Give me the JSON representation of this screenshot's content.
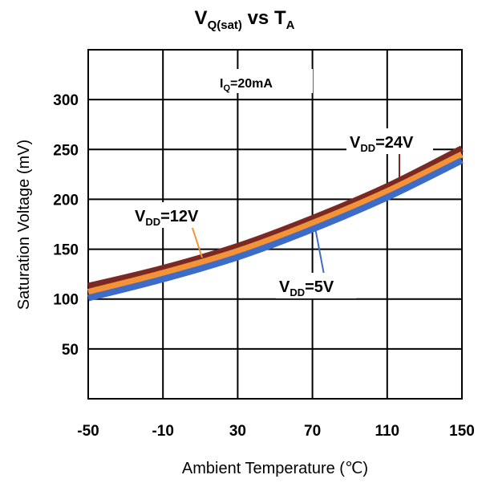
{
  "chart_data": {
    "type": "line",
    "title": {
      "main": "V",
      "main_sub": "Q(sat)",
      "middle": " vs T",
      "middle_sub": "A"
    },
    "xlabel": "Ambient Temperature (℃)",
    "ylabel": "Saturation Voltage (mV)",
    "xlim": [
      -50,
      150
    ],
    "ylim": [
      0,
      350
    ],
    "x_ticks": [
      -50,
      -10,
      30,
      70,
      110,
      150
    ],
    "y_ticks": [
      50,
      100,
      150,
      200,
      250,
      300
    ],
    "grid": true,
    "condition": {
      "prefix": "I",
      "sub": "Q",
      "suffix": "=20mA"
    },
    "series": [
      {
        "name": "VDD=24V",
        "color": "#7a2a22",
        "label": {
          "prefix": "V",
          "sub": "DD",
          "suffix": "=24V"
        },
        "x": [
          -50,
          -10,
          30,
          70,
          110,
          150
        ],
        "y": [
          113,
          131,
          153,
          181,
          213,
          251
        ]
      },
      {
        "name": "VDD=12V",
        "color": "#f39237",
        "label": {
          "prefix": "V",
          "sub": "DD",
          "suffix": "=12V"
        },
        "x": [
          -50,
          -10,
          30,
          70,
          110,
          150
        ],
        "y": [
          107,
          126,
          148,
          176,
          208,
          245
        ]
      },
      {
        "name": "VDD=5V",
        "color": "#3c6bc8",
        "label": {
          "prefix": "V",
          "sub": "DD",
          "suffix": "=5V"
        },
        "x": [
          -50,
          -10,
          30,
          70,
          110,
          150
        ],
        "y": [
          101,
          120,
          142,
          170,
          202,
          239
        ]
      }
    ]
  }
}
